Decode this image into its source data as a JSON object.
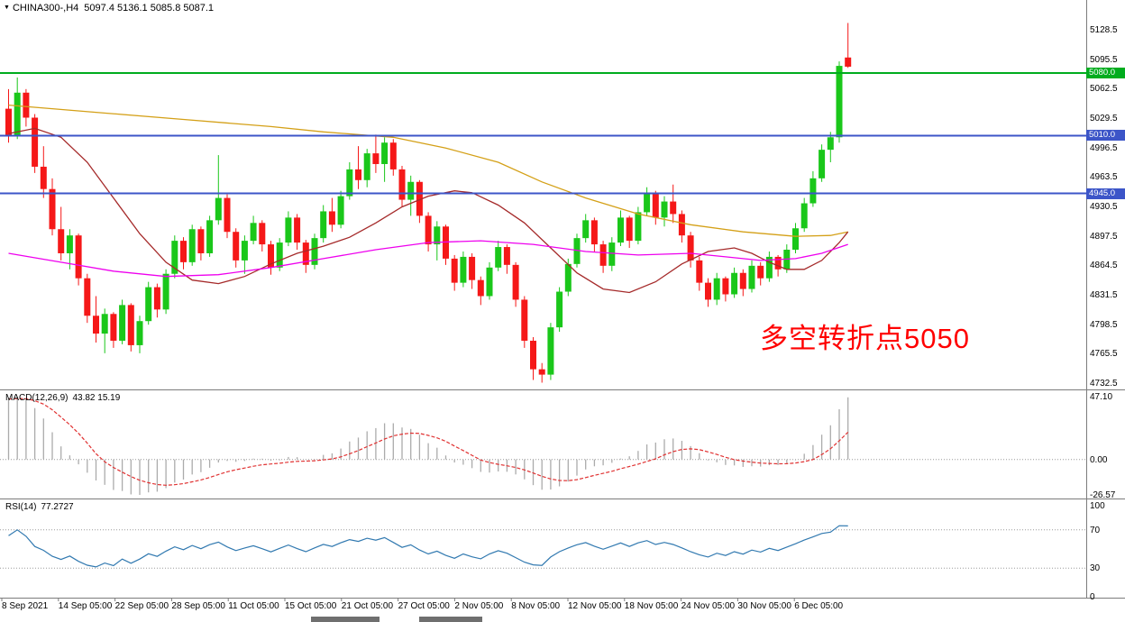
{
  "titlebar": {
    "marker_icon": "▼",
    "symbol": "CHINA300-,H4",
    "ohlc": "5097.4 5136.1 5085.8 5087.1"
  },
  "annotation": {
    "text": "多空转折点5050",
    "color": "#FF0000"
  },
  "chart_data": {
    "type": "candlestick",
    "symbol": "CHINA300-",
    "timeframe": "H4",
    "title": "CHINA300-,H4 5097.4 5136.1 5085.8 5087.1",
    "ohlc_current": {
      "open": 5097.4,
      "high": 5136.1,
      "low": 5085.8,
      "close": 5087.1
    },
    "y_range": [
      4732.5,
      5128.5
    ],
    "y_axis_labels": [
      "5128.5",
      "5095.5",
      "5062.5",
      "5029.5",
      "4996.5",
      "4963.5",
      "4930.5",
      "4897.5",
      "4864.5",
      "4831.5",
      "4798.5",
      "4765.5",
      "4732.5"
    ],
    "time_labels": [
      "8 Sep 2021",
      "14 Sep 05:00",
      "22 Sep 05:00",
      "28 Sep 05:00",
      "11 Oct 05:00",
      "15 Oct 05:00",
      "21 Oct 05:00",
      "27 Oct 05:00",
      "2 Nov 05:00",
      "8 Nov 05:00",
      "12 Nov 05:00",
      "18 Nov 05:00",
      "24 Nov 05:00",
      "30 Nov 05:00",
      "6 Dec 05:00"
    ],
    "hlines": [
      {
        "label": "5080.0",
        "price": 5080.0,
        "color": "#00AC1E"
      },
      {
        "label": "5010.0",
        "price": 5010.0,
        "color": "#3C55C8"
      },
      {
        "label": "4945.0",
        "price": 4945.0,
        "color": "#3C55C8"
      }
    ],
    "colors": {
      "up": "#1AC71A",
      "down": "#F51818",
      "ma_slow": "#D4A017",
      "ma_medium": "#A52A2A",
      "ma_flat": "#EE00EE",
      "macd_hist": "#ABABAB",
      "macd_signal": "#E03232",
      "rsi": "#3179B0",
      "grid_dotted": "#9a9a9a",
      "separator": "#7c7c7c",
      "axis_text": "#000000"
    },
    "candles": [
      [
        5040,
        5062,
        5002,
        5010
      ],
      [
        5010,
        5075,
        5006,
        5058
      ],
      [
        5058,
        5062,
        5020,
        5030
      ],
      [
        5030,
        5034,
        4968,
        4975
      ],
      [
        4975,
        4998,
        4940,
        4950
      ],
      [
        4950,
        4962,
        4898,
        4905
      ],
      [
        4905,
        4930,
        4870,
        4878
      ],
      [
        4878,
        4905,
        4860,
        4898
      ],
      [
        4898,
        4900,
        4842,
        4850
      ],
      [
        4850,
        4855,
        4800,
        4808
      ],
      [
        4808,
        4830,
        4778,
        4788
      ],
      [
        4788,
        4816,
        4766,
        4810
      ],
      [
        4810,
        4812,
        4772,
        4780
      ],
      [
        4780,
        4826,
        4776,
        4820
      ],
      [
        4820,
        4822,
        4768,
        4775
      ],
      [
        4775,
        4808,
        4766,
        4802
      ],
      [
        4802,
        4846,
        4798,
        4840
      ],
      [
        4840,
        4844,
        4806,
        4815
      ],
      [
        4815,
        4860,
        4810,
        4855
      ],
      [
        4855,
        4898,
        4850,
        4892
      ],
      [
        4892,
        4896,
        4860,
        4868
      ],
      [
        4868,
        4910,
        4864,
        4905
      ],
      [
        4905,
        4908,
        4870,
        4878
      ],
      [
        4878,
        4920,
        4874,
        4915
      ],
      [
        4915,
        4988,
        4910,
        4940
      ],
      [
        4940,
        4944,
        4895,
        4902
      ],
      [
        4902,
        4906,
        4862,
        4870
      ],
      [
        4870,
        4898,
        4855,
        4892
      ],
      [
        4892,
        4920,
        4888,
        4912
      ],
      [
        4912,
        4915,
        4880,
        4888
      ],
      [
        4888,
        4892,
        4854,
        4862
      ],
      [
        4862,
        4895,
        4858,
        4890
      ],
      [
        4890,
        4925,
        4886,
        4918
      ],
      [
        4918,
        4922,
        4882,
        4890
      ],
      [
        4890,
        4893,
        4856,
        4865
      ],
      [
        4865,
        4900,
        4860,
        4895
      ],
      [
        4895,
        4932,
        4890,
        4925
      ],
      [
        4925,
        4940,
        4902,
        4910
      ],
      [
        4910,
        4948,
        4906,
        4942
      ],
      [
        4942,
        4980,
        4938,
        4972
      ],
      [
        4972,
        4998,
        4950,
        4960
      ],
      [
        4960,
        4995,
        4952,
        4990
      ],
      [
        4990,
        5011,
        4968,
        4978
      ],
      [
        4978,
        5008,
        4958,
        5002
      ],
      [
        5002,
        5006,
        4965,
        4972
      ],
      [
        4972,
        4976,
        4930,
        4938
      ],
      [
        4938,
        4965,
        4920,
        4958
      ],
      [
        4958,
        4960,
        4912,
        4920
      ],
      [
        4920,
        4924,
        4880,
        4888
      ],
      [
        4888,
        4914,
        4870,
        4908
      ],
      [
        4908,
        4910,
        4865,
        4872
      ],
      [
        4872,
        4876,
        4836,
        4845
      ],
      [
        4845,
        4880,
        4840,
        4874
      ],
      [
        4874,
        4878,
        4838,
        4848
      ],
      [
        4848,
        4852,
        4820,
        4830
      ],
      [
        4830,
        4868,
        4826,
        4862
      ],
      [
        4862,
        4892,
        4858,
        4885
      ],
      [
        4885,
        4888,
        4855,
        4865
      ],
      [
        4865,
        4868,
        4818,
        4826
      ],
      [
        4826,
        4830,
        4772,
        4780
      ],
      [
        4780,
        4784,
        4736,
        4748
      ],
      [
        4748,
        4755,
        4733,
        4742
      ],
      [
        4742,
        4800,
        4736,
        4795
      ],
      [
        4795,
        4840,
        4790,
        4835
      ],
      [
        4835,
        4872,
        4830,
        4866
      ],
      [
        4866,
        4900,
        4862,
        4895
      ],
      [
        4895,
        4922,
        4890,
        4915
      ],
      [
        4915,
        4918,
        4880,
        4888
      ],
      [
        4888,
        4892,
        4856,
        4864
      ],
      [
        4864,
        4896,
        4858,
        4890
      ],
      [
        4890,
        4926,
        4886,
        4918
      ],
      [
        4918,
        4920,
        4884,
        4892
      ],
      [
        4892,
        4930,
        4888,
        4924
      ],
      [
        4924,
        4952,
        4920,
        4945
      ],
      [
        4945,
        4948,
        4910,
        4918
      ],
      [
        4918,
        4942,
        4908,
        4936
      ],
      [
        4936,
        4955,
        4912,
        4922
      ],
      [
        4922,
        4926,
        4890,
        4898
      ],
      [
        4898,
        4902,
        4862,
        4870
      ],
      [
        4870,
        4874,
        4836,
        4845
      ],
      [
        4845,
        4850,
        4818,
        4826
      ],
      [
        4826,
        4856,
        4820,
        4850
      ],
      [
        4850,
        4852,
        4824,
        4832
      ],
      [
        4832,
        4862,
        4828,
        4856
      ],
      [
        4856,
        4860,
        4830,
        4838
      ],
      [
        4838,
        4870,
        4834,
        4864
      ],
      [
        4864,
        4868,
        4842,
        4850
      ],
      [
        4850,
        4880,
        4846,
        4874
      ],
      [
        4874,
        4876,
        4852,
        4860
      ],
      [
        4860,
        4888,
        4856,
        4882
      ],
      [
        4882,
        4912,
        4878,
        4906
      ],
      [
        4906,
        4940,
        4902,
        4934
      ],
      [
        4934,
        4970,
        4930,
        4962
      ],
      [
        4962,
        5000,
        4958,
        4994
      ],
      [
        4994,
        5014,
        4980,
        5008
      ],
      [
        5008,
        5093,
        5002,
        5088
      ],
      [
        5097.4,
        5136.1,
        5085.8,
        5087.1
      ]
    ],
    "indicator_warmup_closes": [
      4806,
      4832,
      4822,
      4848,
      4838,
      4864,
      4854,
      4880,
      4870,
      4896,
      4886,
      4912,
      4902,
      4928,
      4918,
      4944,
      4934,
      4960,
      4950,
      4976,
      4966,
      4992,
      4982,
      5008,
      4998,
      5024,
      5014,
      5040,
      5030,
      5040
    ],
    "moving_averages": [
      {
        "name": "ma-slow",
        "color": "#D4A017",
        "points": [
          [
            0,
            5044
          ],
          [
            10,
            5036
          ],
          [
            20,
            5028
          ],
          [
            30,
            5020
          ],
          [
            36,
            5014
          ],
          [
            44,
            5008
          ],
          [
            50,
            4996
          ],
          [
            56,
            4980
          ],
          [
            61,
            4958
          ],
          [
            66,
            4940
          ],
          [
            72,
            4922
          ],
          [
            78,
            4910
          ],
          [
            84,
            4902
          ],
          [
            90,
            4897
          ],
          [
            94,
            4898
          ],
          [
            96,
            4902
          ]
        ]
      },
      {
        "name": "ma-medium",
        "color": "#A52A2A",
        "points": [
          [
            0,
            5012
          ],
          [
            3,
            5018
          ],
          [
            6,
            5008
          ],
          [
            9,
            4980
          ],
          [
            12,
            4940
          ],
          [
            15,
            4900
          ],
          [
            18,
            4868
          ],
          [
            21,
            4848
          ],
          [
            24,
            4844
          ],
          [
            27,
            4852
          ],
          [
            30,
            4866
          ],
          [
            33,
            4878
          ],
          [
            36,
            4886
          ],
          [
            39,
            4896
          ],
          [
            42,
            4912
          ],
          [
            45,
            4930
          ],
          [
            48,
            4942
          ],
          [
            51,
            4948
          ],
          [
            53,
            4946
          ],
          [
            56,
            4932
          ],
          [
            59,
            4912
          ],
          [
            62,
            4884
          ],
          [
            65,
            4856
          ],
          [
            68,
            4838
          ],
          [
            71,
            4834
          ],
          [
            74,
            4846
          ],
          [
            77,
            4866
          ],
          [
            80,
            4880
          ],
          [
            83,
            4884
          ],
          [
            85,
            4878
          ],
          [
            87,
            4868
          ],
          [
            89,
            4860
          ],
          [
            91,
            4860
          ],
          [
            93,
            4870
          ],
          [
            95,
            4890
          ],
          [
            96,
            4902
          ]
        ]
      },
      {
        "name": "ma-flat",
        "color": "#EE00EE",
        "points": [
          [
            0,
            4878
          ],
          [
            6,
            4868
          ],
          [
            12,
            4858
          ],
          [
            18,
            4852
          ],
          [
            24,
            4854
          ],
          [
            30,
            4862
          ],
          [
            36,
            4872
          ],
          [
            42,
            4882
          ],
          [
            48,
            4890
          ],
          [
            54,
            4892
          ],
          [
            60,
            4888
          ],
          [
            66,
            4880
          ],
          [
            72,
            4876
          ],
          [
            78,
            4878
          ],
          [
            82,
            4874
          ],
          [
            86,
            4870
          ],
          [
            90,
            4872
          ],
          [
            93,
            4878
          ],
          [
            96,
            4888
          ]
        ]
      }
    ],
    "indicators": [
      {
        "type": "macd",
        "label": "MACD(12,26,9)",
        "values_text": "43.82 15.19",
        "params": [
          12,
          26,
          9
        ],
        "axis_labels": [
          "47.10",
          "0.00",
          "-26.57"
        ],
        "range": [
          -26.57,
          47.1
        ]
      },
      {
        "type": "rsi",
        "label": "RSI(14)",
        "values_text": "77.2727",
        "params": [
          14
        ],
        "axis_labels": [
          "100",
          "70",
          "30",
          "0"
        ],
        "range": [
          0,
          100
        ],
        "levels": [
          70,
          30
        ]
      }
    ]
  }
}
